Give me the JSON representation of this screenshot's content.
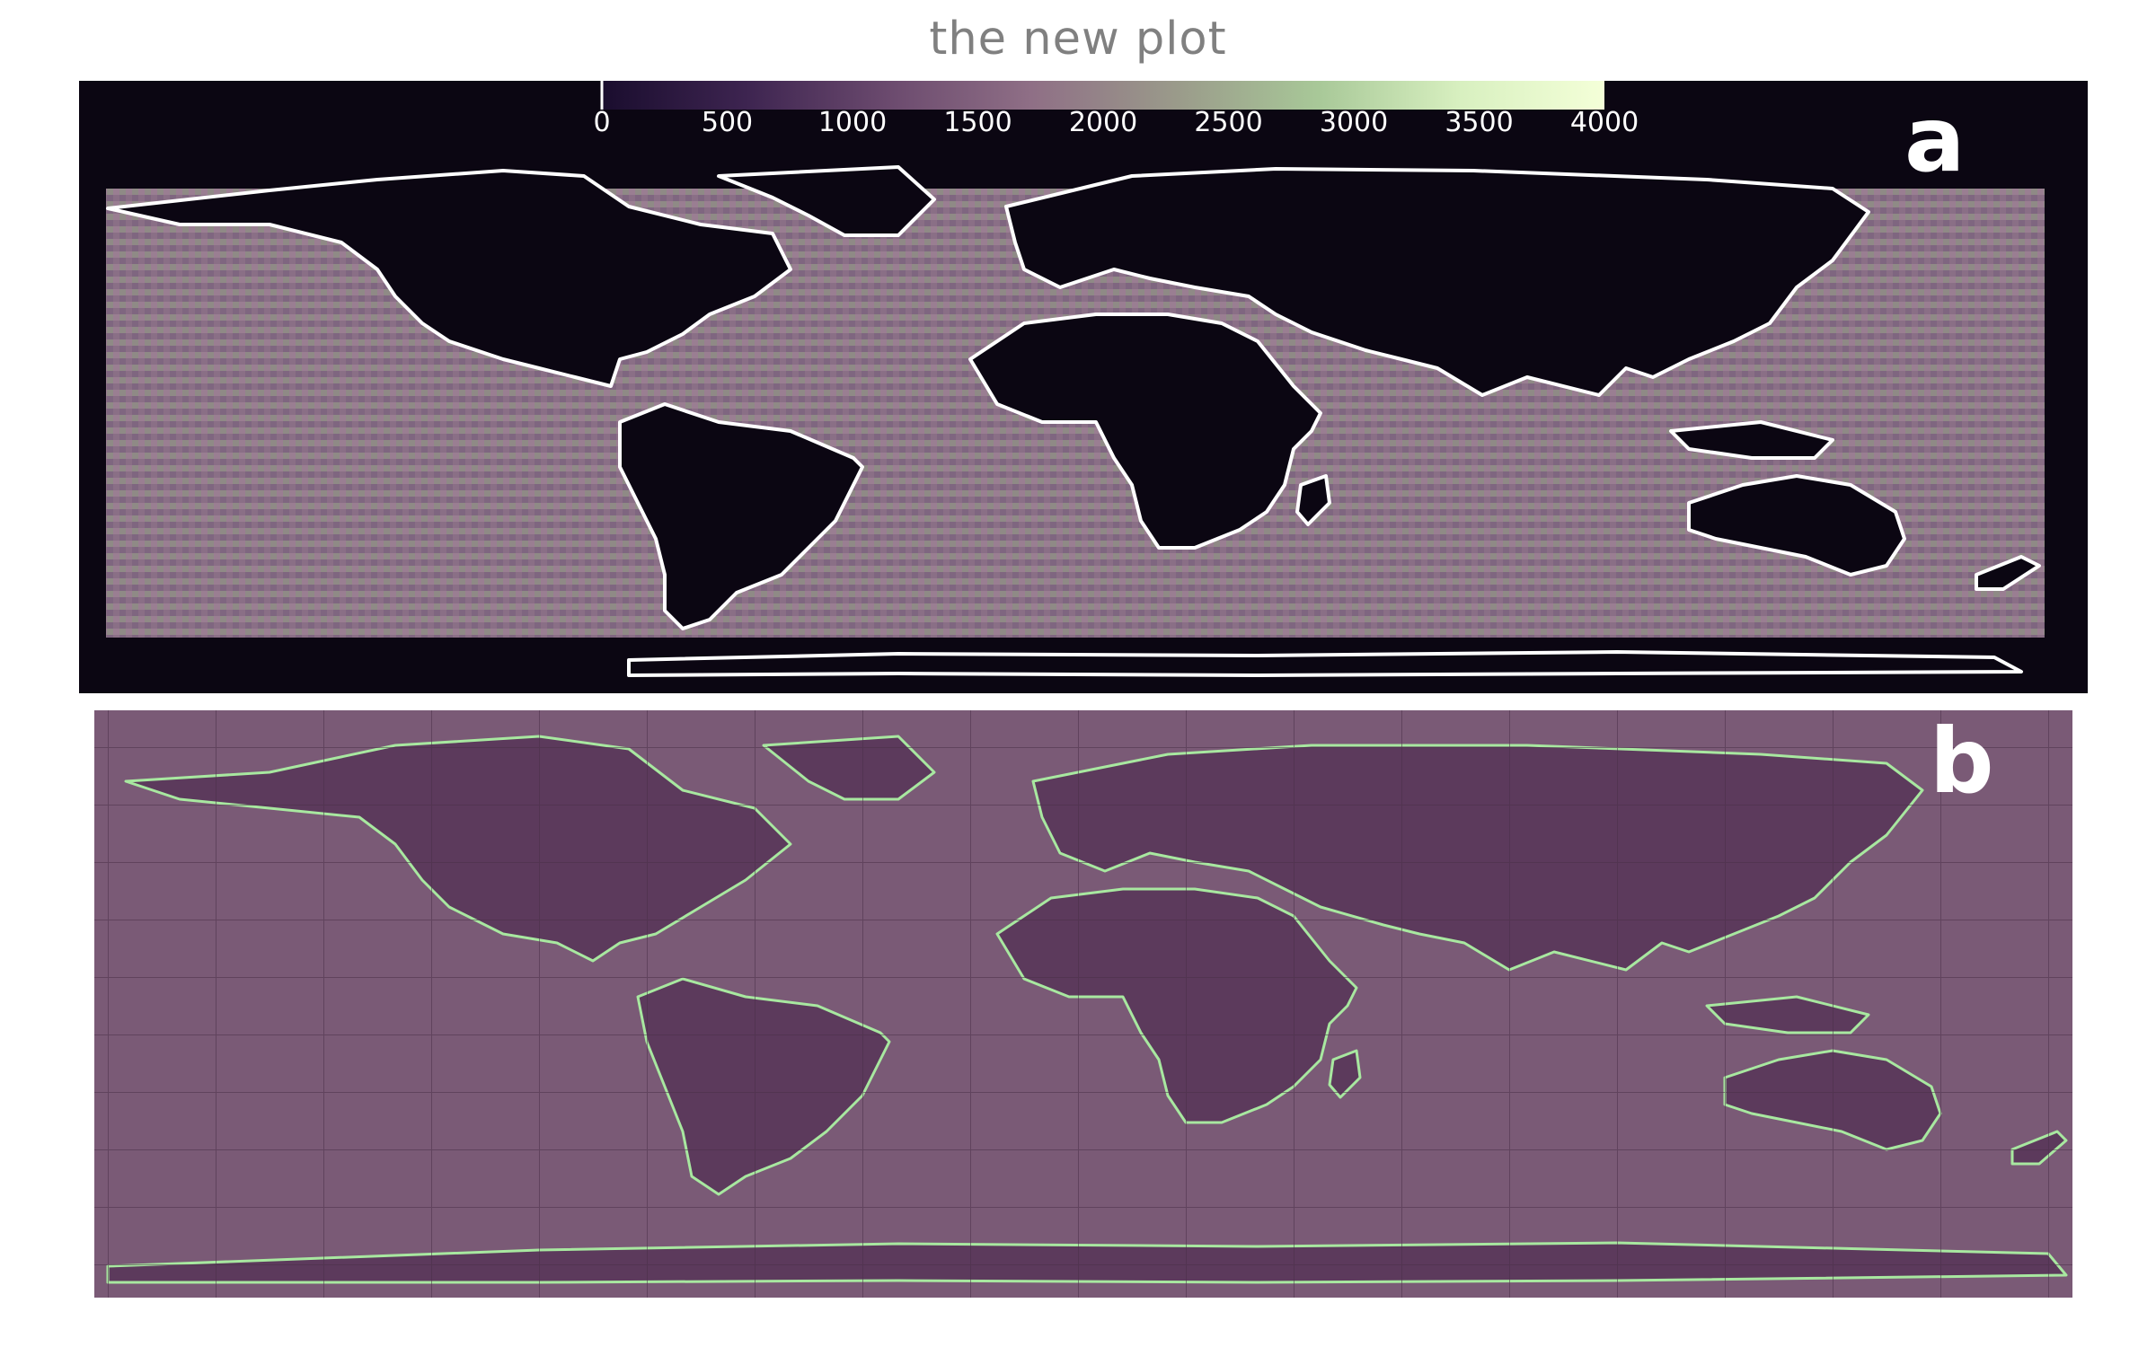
{
  "title": "the new plot",
  "colorbar": {
    "ticks": [
      "0",
      "500",
      "1000",
      "1500",
      "2000",
      "2500",
      "3000",
      "3500",
      "4000"
    ],
    "range": [
      0,
      4000
    ],
    "colors": [
      "#1a0d2e",
      "#3d2450",
      "#6b4a6e",
      "#8f6f86",
      "#9a9a8a",
      "#a8c898",
      "#d8f0c0",
      "#f4ffd8"
    ]
  },
  "panels": [
    {
      "label": "a",
      "background": "#0b0612",
      "ocean_color": "#8a6f86",
      "coastline_color": "#ffffff"
    },
    {
      "label": "b",
      "background": "#6e4a6a",
      "ocean_color": "#7a5a76",
      "land_color": "#5c3a5c",
      "coastline_color": "#a8e8a0",
      "grid_color": "#4a3048"
    }
  ]
}
